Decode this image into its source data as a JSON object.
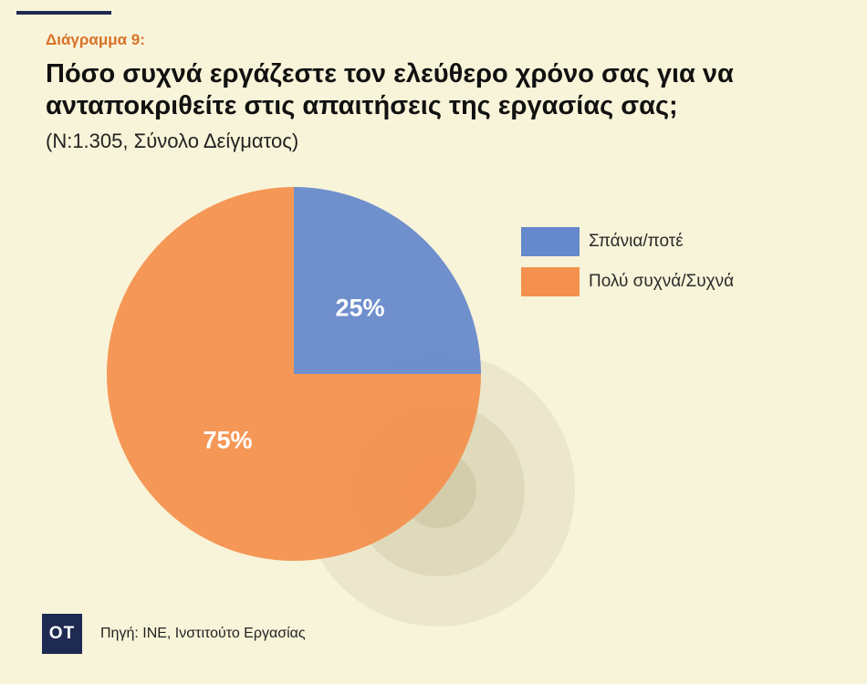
{
  "header": {
    "label": "Διάγραμμα 9:",
    "title": "Πόσο συχνά εργάζεστε τον ελεύθερο χρόνο σας για να ανταποκριθείτε στις απαιτήσεις της εργασίας σας;",
    "subtitle": "(Ν:1.305, Σύνολο Δείγματος)"
  },
  "chart_data": {
    "type": "pie",
    "title": "Πόσο συχνά εργάζεστε τον ελεύθερο χρόνο σας για να ανταποκριθείτε στις απαιτήσεις της εργασίας σας;",
    "categories": [
      "Σπάνια/ποτέ",
      "Πολύ συχνά/Συχνά"
    ],
    "values": [
      25,
      75
    ],
    "value_labels": [
      "25%",
      "75%"
    ],
    "colors": [
      "#6688cc",
      "#f4914f"
    ],
    "legend_position": "right"
  },
  "footer": {
    "logo": "OT",
    "source": "Πηγή: ΙΝΕ, Ινστιτούτο Εργασίας"
  }
}
